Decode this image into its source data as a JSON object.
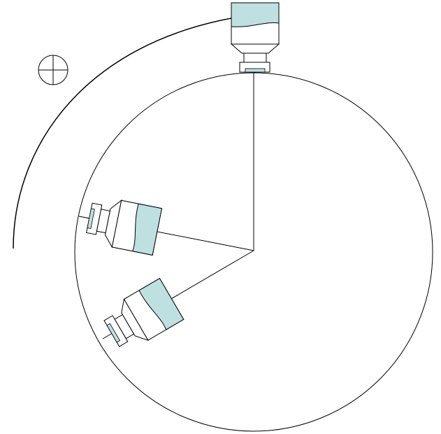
{
  "diagram": {
    "colors": {
      "line": "#000000",
      "liquid": "#bfe0e0",
      "background": "#ffffff"
    },
    "rotation_arrow": {
      "direction": "clockwise"
    },
    "icons": {
      "center_mark": "crosshair-circle-icon",
      "bottle": "bottle-icon"
    },
    "bottles": [
      {
        "position": "top"
      },
      {
        "position": "left"
      },
      {
        "position": "lower-left"
      }
    ]
  }
}
